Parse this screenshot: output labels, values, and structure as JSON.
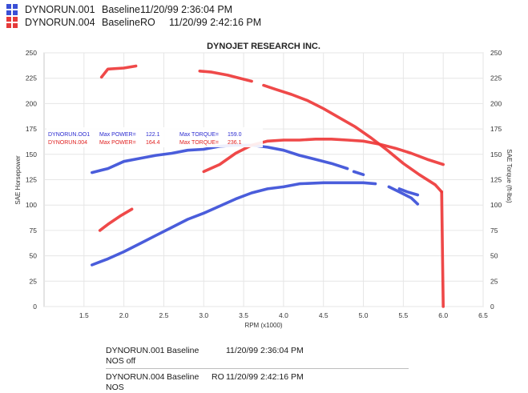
{
  "runs": [
    {
      "run": "DYNORUN.001",
      "desc": "Baseline",
      "datetime": "11/20/99 2:36:04 PM",
      "color": "#3a4fd6"
    },
    {
      "run": "DYNORUN.004",
      "desc": "BaselineRO",
      "datetime": "11/20/99 2:42:16 PM",
      "color": "#e63a3a"
    }
  ],
  "footer": [
    {
      "run": "DYNORUN.001",
      "desc": "Baseline",
      "sub": "",
      "datetime": "11/20/99 2:36:04 PM",
      "note": "NOS off"
    },
    {
      "run": "DYNORUN.004",
      "desc": "Baseline",
      "sub": "RO",
      "datetime": "11/20/99 2:42:16 PM",
      "note": "NOS"
    }
  ],
  "chart_data": {
    "type": "line",
    "title": "DYNOJET RESEARCH INC.",
    "xlabel": "RPM (x1000)",
    "ylabel_left": "SAE Horsepower",
    "ylabel_right": "SAE Torque (ft-lbs)",
    "xlim": [
      1.0,
      6.5
    ],
    "ylim": [
      0,
      250
    ],
    "x_ticks": [
      "1.5",
      "2.0",
      "2.5",
      "3.0",
      "3.5",
      "4.0",
      "4.5",
      "5.0",
      "5.5",
      "6.0",
      "6.5"
    ],
    "y_ticks": [
      "0",
      "25",
      "50",
      "75",
      "100",
      "125",
      "150",
      "175",
      "200",
      "225",
      "250"
    ],
    "grid": true,
    "annotations": [
      {
        "run": "DYNORUN.OO1",
        "power_label": "Max POWER=",
        "power": "122.1",
        "torque_label": "Max TORQUE=",
        "torque": "159.0",
        "color": "#2b2bd0"
      },
      {
        "run": "DYNORUN.004",
        "power_label": "Max POWER=",
        "power": "164.4",
        "torque_label": "Max TORQUE=",
        "torque": "236.1",
        "color": "#e02020"
      }
    ],
    "series": [
      {
        "run": "DYNORUN.001",
        "measure": "power",
        "color": "#3b4fd8",
        "segments": [
          [
            [
              1.6,
              41
            ],
            [
              1.7,
              44
            ],
            [
              1.8,
              47
            ],
            [
              2.0,
              54
            ],
            [
              2.2,
              62
            ],
            [
              2.4,
              70
            ],
            [
              2.6,
              78
            ],
            [
              2.8,
              86
            ],
            [
              3.0,
              92
            ],
            [
              3.2,
              99
            ],
            [
              3.4,
              106
            ],
            [
              3.6,
              112
            ],
            [
              3.8,
              116
            ],
            [
              4.0,
              118
            ],
            [
              4.2,
              121
            ],
            [
              4.5,
              122
            ],
            [
              4.8,
              122
            ],
            [
              5.0,
              122
            ],
            [
              5.15,
              121
            ]
          ]
        ]
      },
      {
        "run": "DYNORUN.001",
        "measure": "torque",
        "color": "#3b4fd8",
        "segments": [
          [
            [
              1.6,
              132
            ],
            [
              1.8,
              136
            ],
            [
              2.0,
              143
            ],
            [
              2.2,
              146
            ],
            [
              2.4,
              149
            ],
            [
              2.6,
              151
            ],
            [
              2.8,
              154
            ],
            [
              3.0,
              155
            ],
            [
              3.2,
              158
            ],
            [
              3.4,
              159
            ],
            [
              3.6,
              159
            ],
            [
              3.8,
              157
            ],
            [
              4.0,
              154
            ],
            [
              4.2,
              149
            ],
            [
              4.4,
              145
            ],
            [
              4.6,
              141
            ],
            [
              4.8,
              136
            ]
          ],
          [
            [
              4.88,
              133
            ],
            [
              5.0,
              130
            ]
          ],
          [
            [
              5.32,
              118
            ],
            [
              5.45,
              113
            ],
            [
              5.6,
              107
            ],
            [
              5.68,
              101
            ]
          ],
          [
            [
              5.45,
              116
            ],
            [
              5.55,
              113
            ],
            [
              5.68,
              110
            ]
          ]
        ]
      },
      {
        "run": "DYNORUN.004",
        "measure": "power",
        "color": "#ee3a3a",
        "segments": [
          [
            [
              1.7,
              75
            ],
            [
              1.8,
              81
            ],
            [
              1.95,
              89
            ],
            [
              2.1,
              96
            ]
          ],
          [
            [
              3.0,
              133
            ],
            [
              3.2,
              140
            ],
            [
              3.4,
              151
            ],
            [
              3.6,
              159
            ],
            [
              3.8,
              163
            ],
            [
              4.0,
              164
            ],
            [
              4.2,
              164
            ],
            [
              4.4,
              165
            ],
            [
              4.6,
              165
            ],
            [
              4.8,
              164
            ],
            [
              5.0,
              163
            ],
            [
              5.2,
              160
            ],
            [
              5.4,
              156
            ],
            [
              5.6,
              151
            ],
            [
              5.8,
              145
            ],
            [
              6.0,
              140
            ]
          ]
        ]
      },
      {
        "run": "DYNORUN.004",
        "measure": "torque",
        "color": "#ee3a3a",
        "segments": [
          [
            [
              1.72,
              226
            ],
            [
              1.8,
              234
            ],
            [
              2.0,
              235
            ],
            [
              2.15,
              237
            ]
          ],
          [
            [
              2.95,
              232
            ],
            [
              3.1,
              231
            ],
            [
              3.3,
              228
            ],
            [
              3.5,
              224
            ],
            [
              3.6,
              222
            ]
          ],
          [
            [
              3.75,
              218
            ],
            [
              3.9,
              214
            ],
            [
              4.1,
              209
            ],
            [
              4.3,
              203
            ],
            [
              4.5,
              195
            ],
            [
              4.7,
              186
            ],
            [
              4.9,
              177
            ],
            [
              5.1,
              166
            ],
            [
              5.3,
              154
            ],
            [
              5.5,
              141
            ],
            [
              5.7,
              130
            ],
            [
              5.9,
              120
            ],
            [
              5.98,
              113
            ]
          ],
          [
            [
              5.98,
              113
            ],
            [
              6.0,
              0
            ]
          ]
        ]
      }
    ]
  }
}
